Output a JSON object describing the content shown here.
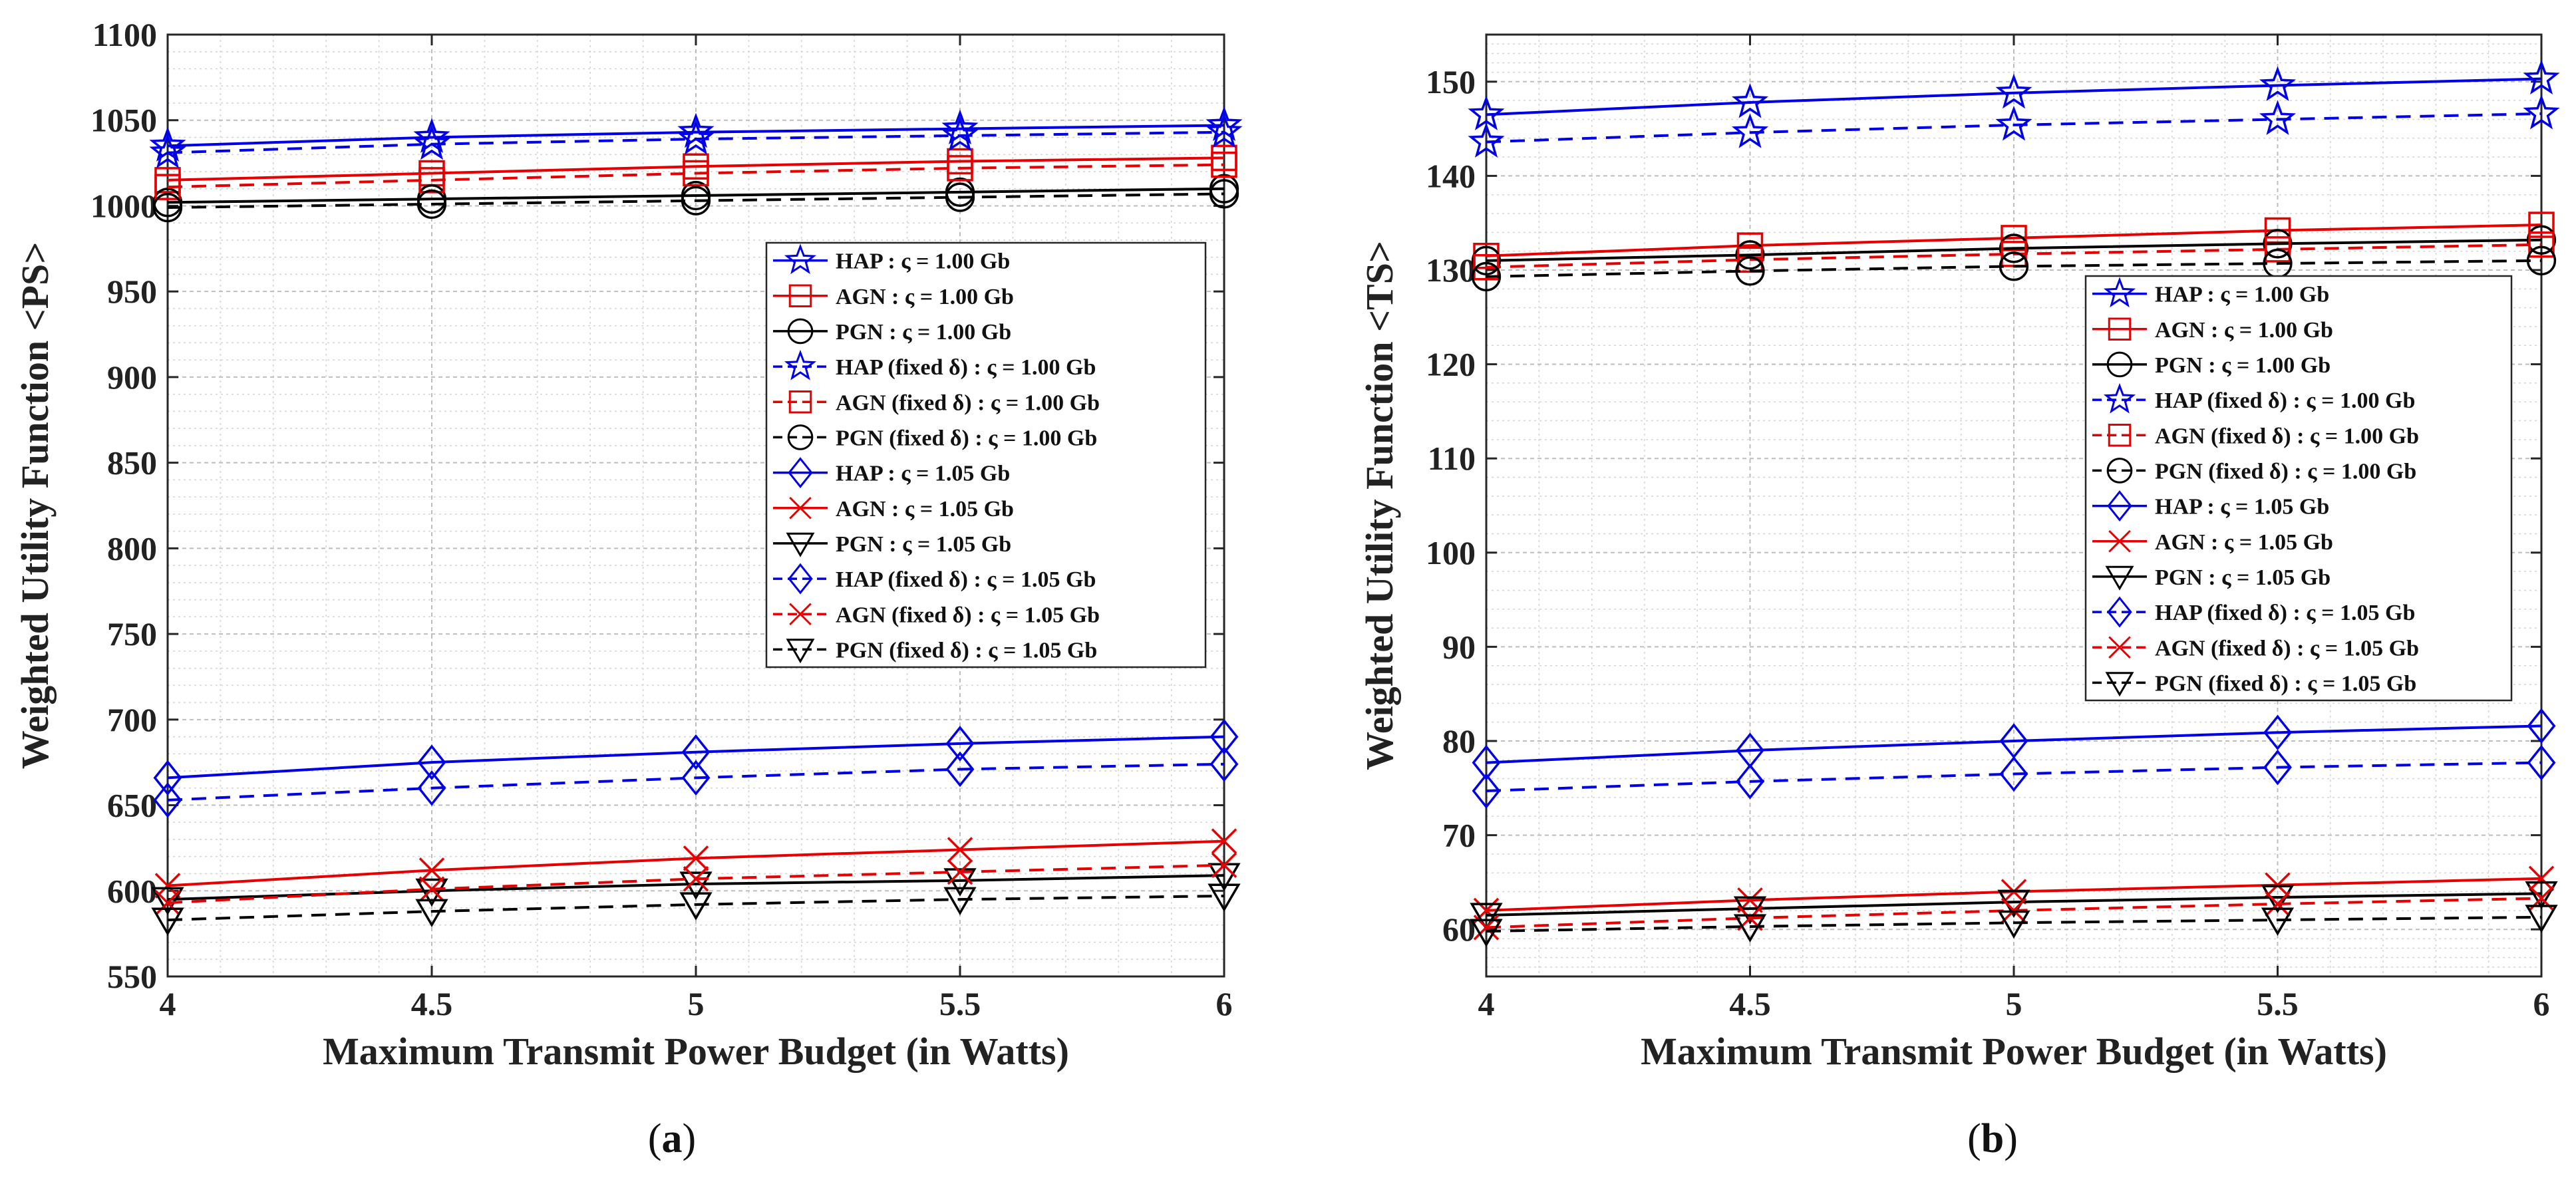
{
  "chart_data": [
    {
      "id": "a",
      "type": "line",
      "caption_open": "(",
      "caption_letter": "a",
      "caption_close": ")",
      "xlabel": "Maximum Transmit Power Budget (in Watts)",
      "ylabel": "Weighted Utility Function <PS>",
      "xlim": [
        4,
        6
      ],
      "ylim": [
        550,
        1100
      ],
      "xticks": [
        4,
        4.5,
        5,
        5.5,
        6
      ],
      "xtick_labels": [
        "4",
        "4.5",
        "5",
        "5.5",
        "6"
      ],
      "yticks": [
        550,
        600,
        650,
        700,
        750,
        800,
        850,
        900,
        950,
        1000,
        1050,
        1100
      ],
      "ytick_labels": [
        "550",
        "600",
        "650",
        "700",
        "750",
        "800",
        "850",
        "900",
        "950",
        "1000",
        "1050",
        "1100"
      ],
      "grid": true,
      "legend_position": "center-right",
      "x": [
        4,
        4.5,
        5,
        5.5,
        6
      ],
      "series": [
        {
          "label": "HAP : ς = 1.00 Gb",
          "color": "#0000e6",
          "dash": "solid",
          "marker": "star",
          "values": [
            1035,
            1040,
            1043,
            1045,
            1047
          ]
        },
        {
          "label": "AGN : ς = 1.00 Gb",
          "color": "#e60000",
          "dash": "solid",
          "marker": "square",
          "values": [
            1015,
            1019,
            1023,
            1026,
            1028
          ]
        },
        {
          "label": "PGN : ς = 1.00 Gb",
          "color": "#000000",
          "dash": "solid",
          "marker": "circle",
          "values": [
            1002,
            1004,
            1006,
            1008,
            1010
          ]
        },
        {
          "label": "HAP (fixed δ) : ς = 1.00 Gb",
          "color": "#0000e6",
          "dash": "dashed",
          "marker": "star",
          "values": [
            1031,
            1036,
            1039,
            1041,
            1043
          ]
        },
        {
          "label": "AGN (fixed δ) : ς = 1.00 Gb",
          "color": "#e60000",
          "dash": "dashed",
          "marker": "square",
          "values": [
            1011,
            1015,
            1019,
            1022,
            1024
          ]
        },
        {
          "label": "PGN (fixed δ) : ς = 1.00 Gb",
          "color": "#000000",
          "dash": "dashed",
          "marker": "circle",
          "values": [
            999,
            1001,
            1003,
            1005,
            1007
          ]
        },
        {
          "label": "HAP : ς = 1.05 Gb",
          "color": "#0000e6",
          "dash": "solid",
          "marker": "diamond",
          "values": [
            666,
            675,
            681,
            686,
            690
          ]
        },
        {
          "label": "AGN : ς = 1.05 Gb",
          "color": "#e60000",
          "dash": "solid",
          "marker": "x",
          "values": [
            603,
            612,
            619,
            624,
            629
          ]
        },
        {
          "label": "PGN : ς = 1.05 Gb",
          "color": "#000000",
          "dash": "solid",
          "marker": "triangle",
          "values": [
            595,
            600,
            604,
            606,
            609
          ]
        },
        {
          "label": "HAP (fixed δ) : ς = 1.05 Gb",
          "color": "#0000e6",
          "dash": "dashed",
          "marker": "diamond",
          "values": [
            653,
            660,
            666,
            671,
            674
          ]
        },
        {
          "label": "AGN (fixed δ) : ς = 1.05 Gb",
          "color": "#e60000",
          "dash": "dashed",
          "marker": "x",
          "values": [
            593,
            601,
            607,
            611,
            615
          ]
        },
        {
          "label": "PGN (fixed δ) : ς = 1.05 Gb",
          "color": "#000000",
          "dash": "dashed",
          "marker": "triangle",
          "values": [
            583,
            588,
            592,
            595,
            597
          ]
        }
      ]
    },
    {
      "id": "b",
      "type": "line",
      "caption_open": "(",
      "caption_letter": "b",
      "caption_close": ")",
      "xlabel": "Maximum Transmit Power Budget (in Watts)",
      "ylabel": "Weighted Utility Function <TS>",
      "xlim": [
        4,
        6
      ],
      "ylim": [
        55,
        155
      ],
      "xticks": [
        4,
        4.5,
        5,
        5.5,
        6
      ],
      "xtick_labels": [
        "4",
        "4.5",
        "5",
        "5.5",
        "6"
      ],
      "yticks": [
        60,
        70,
        80,
        90,
        100,
        110,
        120,
        130,
        140,
        150
      ],
      "ytick_labels": [
        "60",
        "70",
        "80",
        "90",
        "100",
        "110",
        "120",
        "130",
        "140",
        "150"
      ],
      "grid": true,
      "legend_position": "center-right",
      "x": [
        4,
        4.5,
        5,
        5.5,
        6
      ],
      "series": [
        {
          "label": "HAP : ς = 1.00 Gb",
          "color": "#0000e6",
          "dash": "solid",
          "marker": "star",
          "values": [
            146.5,
            147.8,
            148.8,
            149.6,
            150.3
          ]
        },
        {
          "label": "AGN : ς = 1.00 Gb",
          "color": "#e60000",
          "dash": "solid",
          "marker": "square",
          "values": [
            131.5,
            132.6,
            133.4,
            134.2,
            134.8
          ]
        },
        {
          "label": "PGN : ς = 1.00 Gb",
          "color": "#000000",
          "dash": "solid",
          "marker": "circle",
          "values": [
            131.0,
            131.6,
            132.3,
            132.8,
            133.2
          ]
        },
        {
          "label": "HAP (fixed δ) : ς = 1.00 Gb",
          "color": "#0000e6",
          "dash": "dashed",
          "marker": "star",
          "values": [
            143.6,
            144.6,
            145.4,
            146.0,
            146.6
          ]
        },
        {
          "label": "AGN (fixed δ) : ς = 1.00 Gb",
          "color": "#e60000",
          "dash": "dashed",
          "marker": "square",
          "values": [
            130.3,
            131.1,
            131.7,
            132.2,
            132.7
          ]
        },
        {
          "label": "PGN (fixed δ) : ς = 1.00 Gb",
          "color": "#000000",
          "dash": "dashed",
          "marker": "circle",
          "values": [
            129.3,
            129.9,
            130.4,
            130.7,
            131.0
          ]
        },
        {
          "label": "HAP : ς = 1.05 Gb",
          "color": "#0000e6",
          "dash": "solid",
          "marker": "diamond",
          "values": [
            77.7,
            79.0,
            80.0,
            80.9,
            81.6
          ]
        },
        {
          "label": "AGN : ς = 1.05 Gb",
          "color": "#e60000",
          "dash": "solid",
          "marker": "x",
          "values": [
            62.0,
            63.1,
            64.0,
            64.7,
            65.4
          ]
        },
        {
          "label": "PGN : ς = 1.05 Gb",
          "color": "#000000",
          "dash": "solid",
          "marker": "triangle",
          "values": [
            61.5,
            62.2,
            62.9,
            63.4,
            63.8
          ]
        },
        {
          "label": "HAP (fixed δ) : ς = 1.05 Gb",
          "color": "#0000e6",
          "dash": "dashed",
          "marker": "diamond",
          "values": [
            74.7,
            75.7,
            76.5,
            77.2,
            77.7
          ]
        },
        {
          "label": "AGN (fixed δ) : ς = 1.05 Gb",
          "color": "#e60000",
          "dash": "dashed",
          "marker": "x",
          "values": [
            60.2,
            61.2,
            62.0,
            62.7,
            63.3
          ]
        },
        {
          "label": "PGN (fixed δ) : ς = 1.05 Gb",
          "color": "#000000",
          "dash": "dashed",
          "marker": "triangle",
          "values": [
            59.8,
            60.3,
            60.7,
            61.0,
            61.3
          ]
        }
      ]
    }
  ]
}
